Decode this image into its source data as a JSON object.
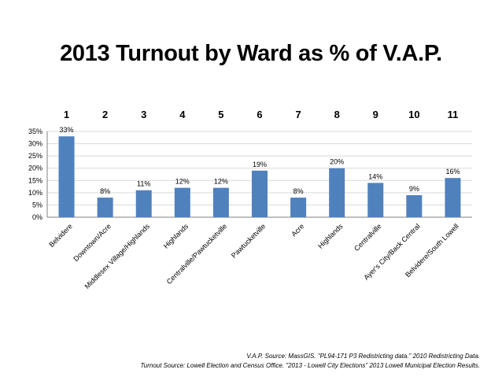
{
  "title": "2013 Turnout by Ward as % of V.A.P.",
  "chart_data": {
    "type": "bar",
    "title": "2013 Turnout by Ward as % of V.A.P.",
    "ward_numbers": [
      "1",
      "2",
      "3",
      "4",
      "5",
      "6",
      "7",
      "8",
      "9",
      "10",
      "11"
    ],
    "categories": [
      "Belvidere",
      "Downtown/Acre",
      "Middlesex Village/Highlands",
      "Highlands",
      "Centralville/Pawtucketville",
      "Pawtucketville",
      "Acre",
      "Highlands",
      "Centralville",
      "Ayer's City/Back Central",
      "Belvidere/South Lowell"
    ],
    "values": [
      33,
      8,
      11,
      12,
      12,
      19,
      8,
      20,
      14,
      9,
      16
    ],
    "data_labels": [
      "33%",
      "8%",
      "11%",
      "12%",
      "12%",
      "19%",
      "8%",
      "20%",
      "14%",
      "9%",
      "16%"
    ],
    "ylim": [
      0,
      35
    ],
    "yticks": [
      "0%",
      "5%",
      "10%",
      "15%",
      "20%",
      "25%",
      "30%",
      "35%"
    ],
    "grid": true,
    "bar_color": "#4f81bd"
  },
  "sources": {
    "line1": "V.A.P. Source: MassGIS. \"PL94-171 P3 Redistricting data.\" 2010 Redistricting Data.",
    "line2": "Turnout Source: Lowell Election and Census Office. \"2013 - Lowell City Elections\" 2013 Lowell Municipal Election Results."
  }
}
